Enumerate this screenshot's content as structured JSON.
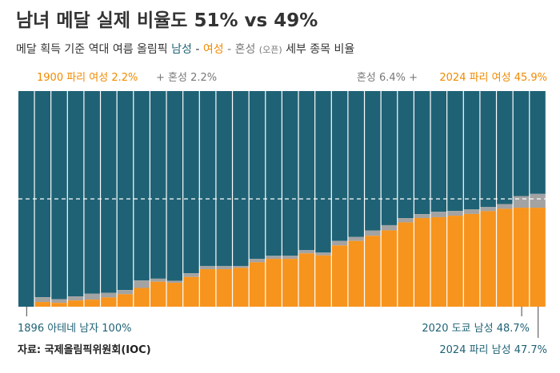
{
  "header": {
    "title": "남녀 메달 실제 비율도 51% vs 49%",
    "subtitle_prefix": "메달 획득 기준 역대 여름 올림픽 ",
    "subtitle_male": "남성",
    "subtitle_sep1": " - ",
    "subtitle_female": "여성",
    "subtitle_sep2": " - 혼성 ",
    "subtitle_open": "(오픈)",
    "subtitle_suffix": " 세부 종목 비율"
  },
  "annotations": {
    "female_1900": "1900 파리 여성 2.2%",
    "mixed_1900": "+ 혼성 2.2%",
    "mixed_2024": "혼성 6.4% +",
    "female_2024": "2024 파리 여성 45.9%",
    "male_1896": "1896 아테네 남자 100%",
    "male_2020": "2020 도쿄 남성 48.7%",
    "male_2024": "2024 파리 남성 47.7%"
  },
  "source": "자료: 국제올림픽위원회(IOC)",
  "colors": {
    "male": "#1f6275",
    "female": "#f7941d",
    "mixed": "#a3a3a3",
    "reference_line": "#ffffff",
    "axis": "#444444"
  },
  "chart_data": {
    "type": "stacked-bar",
    "title": "남녀 메달 실제 비율도 51% vs 49%",
    "subtitle": "메달 획득 기준 역대 여름 올림픽 남성 - 여성 - 혼성 (오픈) 세부 종목 비율",
    "categories": [
      "1896 아테네",
      "1900 파리",
      "",
      "",
      "",
      "",
      "",
      "",
      "",
      "",
      "",
      "",
      "",
      "",
      "",
      "",
      "",
      "",
      "",
      "",
      "",
      "",
      "",
      "",
      "",
      "",
      "",
      "",
      "",
      "",
      "2020 도쿄",
      "2024 파리"
    ],
    "series": [
      {
        "name": "남성",
        "values": [
          100,
          95.6,
          96.5,
          95.2,
          94.0,
          93.6,
          92.3,
          87.8,
          87.0,
          88.0,
          84.5,
          81.1,
          81.1,
          81.1,
          77.8,
          76.4,
          76.4,
          73.8,
          74.9,
          69.5,
          67.6,
          64.7,
          62.2,
          58.9,
          57.1,
          56.0,
          55.6,
          54.9,
          53.8,
          52.4,
          48.7,
          47.7
        ]
      },
      {
        "name": "여성",
        "values": [
          0,
          2.2,
          1.8,
          2.9,
          3.3,
          4.3,
          5.8,
          8.7,
          11.6,
          11.1,
          13.8,
          17.4,
          17.4,
          18.0,
          20.6,
          22.2,
          22.2,
          24.7,
          23.8,
          28.4,
          30.5,
          32.9,
          35.4,
          39.1,
          41.1,
          41.5,
          42.2,
          43.0,
          44.3,
          45.4,
          45.9,
          45.9
        ]
      },
      {
        "name": "혼성",
        "values": [
          0,
          2.2,
          1.7,
          1.9,
          2.7,
          2.1,
          1.9,
          3.5,
          1.4,
          0.9,
          1.7,
          1.5,
          1.5,
          0.9,
          1.6,
          1.4,
          1.4,
          1.5,
          1.3,
          2.1,
          1.9,
          2.4,
          2.4,
          2.0,
          1.8,
          2.5,
          2.2,
          2.1,
          1.9,
          2.2,
          5.4,
          6.4
        ]
      }
    ],
    "reference_line": 50,
    "ylim": [
      0,
      100
    ],
    "legend": "none"
  }
}
